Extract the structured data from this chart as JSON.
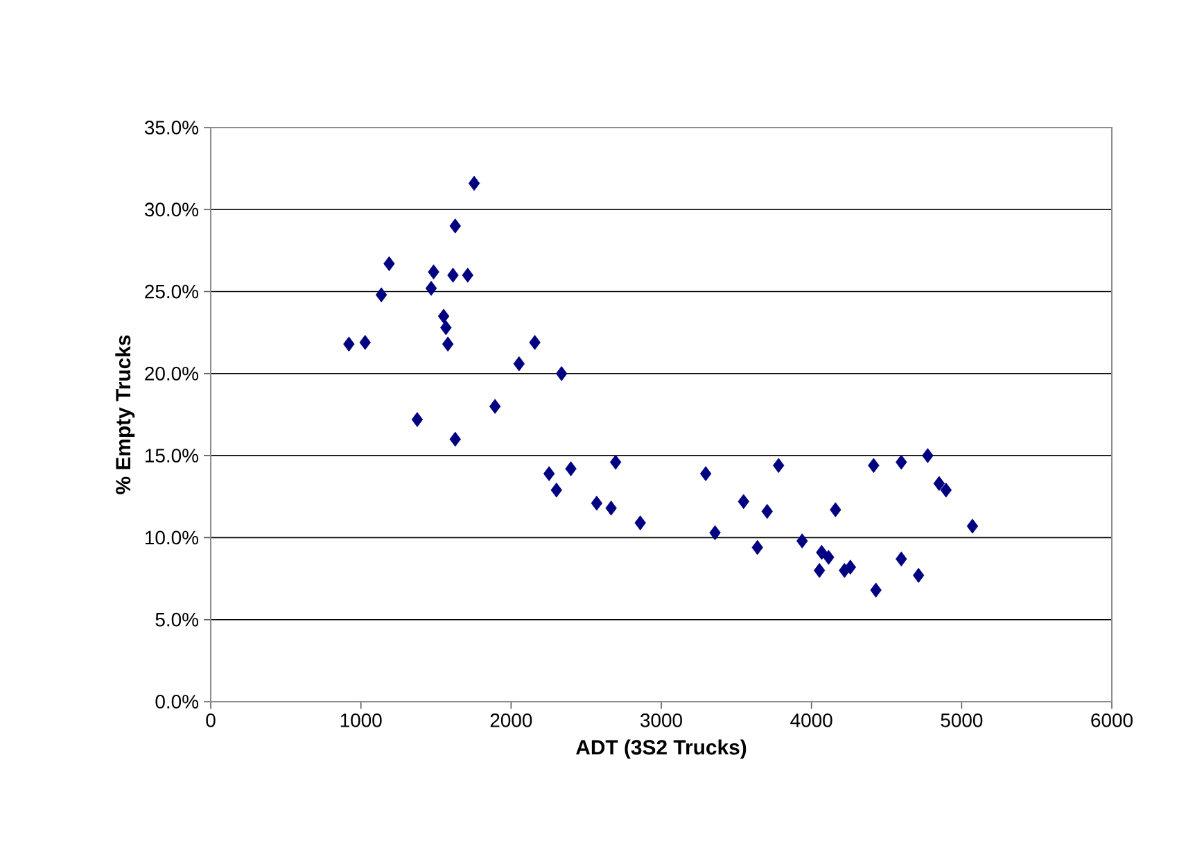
{
  "chart_data": {
    "type": "scatter",
    "xlabel": "ADT (3S2 Trucks)",
    "ylabel": "% Empty Trucks",
    "series": [
      {
        "color": "#000080",
        "x": [
          920,
          1028,
          1136,
          1188,
          1375,
          1468,
          1484,
          1551,
          1566,
          1579,
          1613,
          1628,
          1628,
          1711,
          1754,
          1893,
          2053,
          2158,
          2336,
          2253,
          2302,
          2398,
          2570,
          2666,
          2696,
          2860,
          3296,
          3358,
          3548,
          3640,
          3705,
          3781,
          3938,
          4053,
          4068,
          4114,
          4160,
          4220,
          4259,
          4414,
          4429,
          4598,
          4598,
          4713,
          4774,
          4850,
          4896,
          5072
        ],
        "values": [
          21.8,
          21.9,
          24.8,
          26.7,
          17.2,
          25.2,
          26.2,
          23.5,
          22.8,
          21.8,
          26.0,
          29.0,
          16.0,
          26.0,
          31.6,
          18.0,
          20.6,
          21.9,
          20.0,
          13.9,
          12.9,
          14.2,
          12.1,
          11.8,
          14.6,
          10.9,
          13.9,
          10.3,
          12.2,
          9.4,
          11.6,
          14.4,
          9.8,
          8.0,
          9.1,
          8.8,
          11.7,
          8.0,
          8.2,
          14.4,
          6.8,
          14.6,
          8.7,
          7.7,
          15.0,
          13.3,
          12.9,
          10.7
        ]
      }
    ],
    "xlim": [
      0,
      6000
    ],
    "xticks": [
      0,
      1000,
      2000,
      3000,
      4000,
      5000,
      6000
    ],
    "ylim": [
      0,
      35
    ],
    "yticks": [
      {
        "value": 0,
        "label": "0.0%"
      },
      {
        "value": 5,
        "label": "5.0%"
      },
      {
        "value": 10,
        "label": "10.0%"
      },
      {
        "value": 15,
        "label": "15.0%"
      },
      {
        "value": 20,
        "label": "20.0%"
      },
      {
        "value": 25,
        "label": "25.0%"
      },
      {
        "value": 30,
        "label": "30.0%"
      },
      {
        "value": 35,
        "label": "35.0%"
      }
    ],
    "grid": "y",
    "marker": "diamond"
  }
}
